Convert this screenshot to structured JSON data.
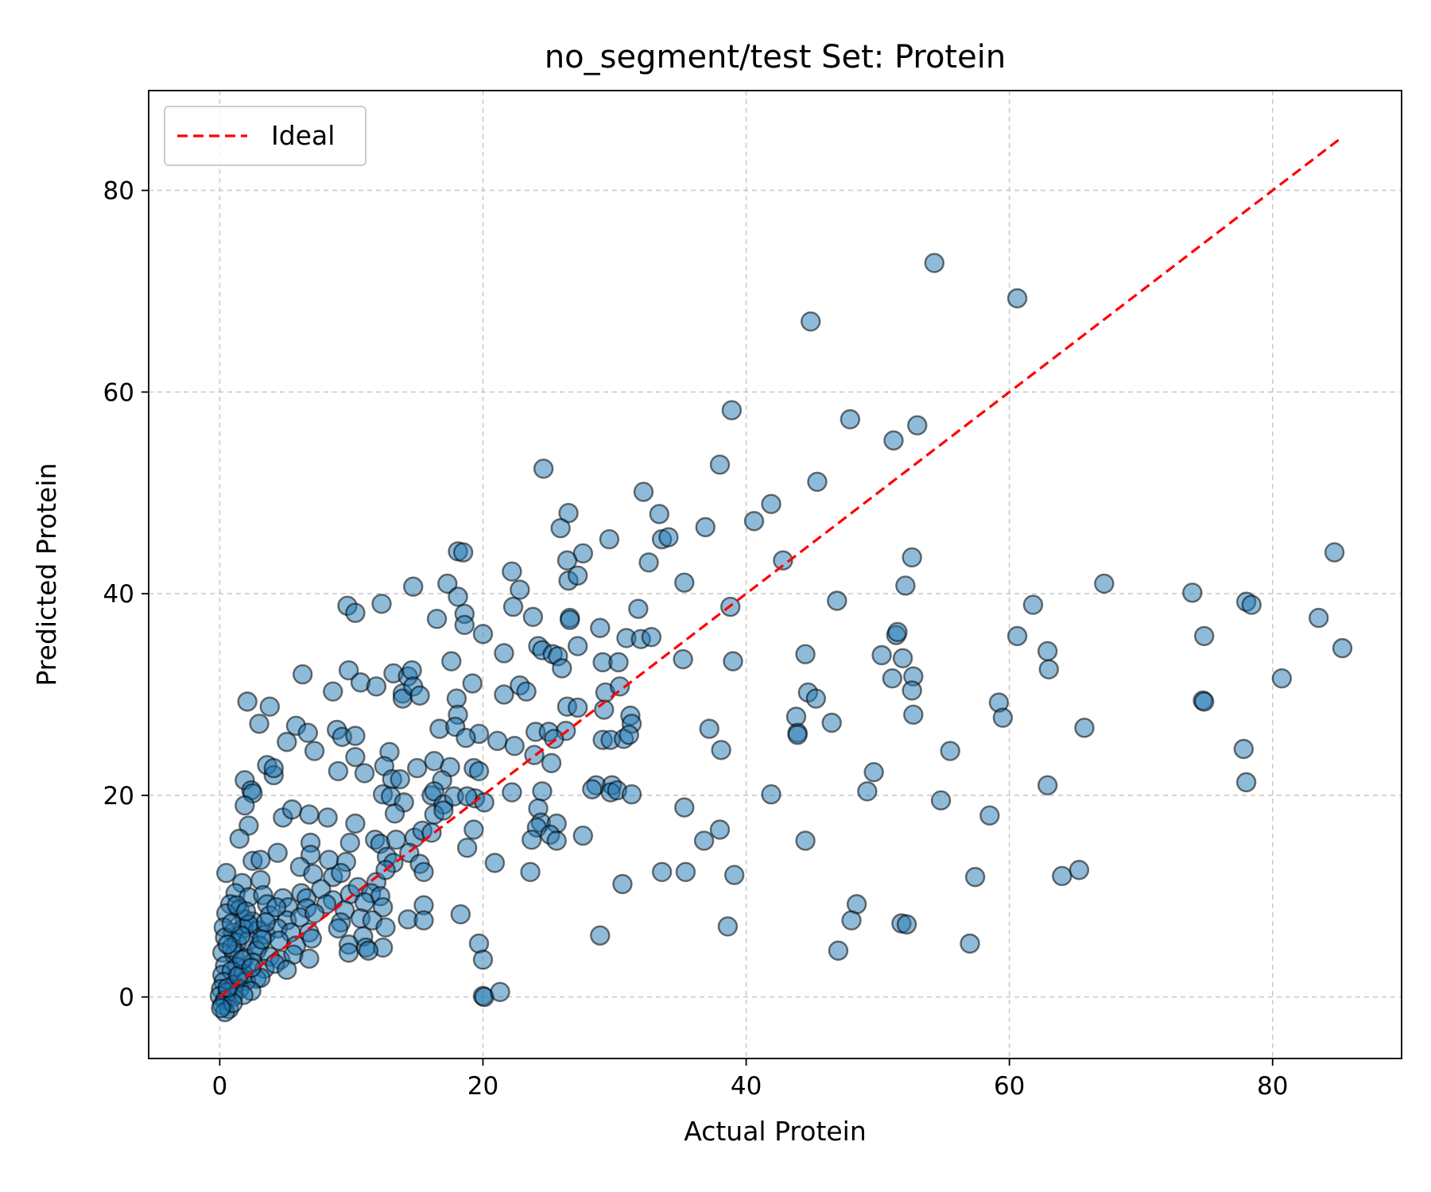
{
  "chart_data": {
    "type": "scatter",
    "title": "no_segment/test Set: Protein",
    "xlabel": "Actual Protein",
    "ylabel": "Predicted Protein",
    "xlim": [
      -5.4,
      89.8
    ],
    "ylim": [
      -6.1,
      89.9
    ],
    "xticks": [
      0,
      20,
      40,
      60,
      80
    ],
    "yticks": [
      0,
      20,
      40,
      60,
      80
    ],
    "grid": true,
    "legend": {
      "placement": "top-left",
      "entries": [
        "Ideal"
      ]
    },
    "ideal_line": {
      "from": [
        0,
        0
      ],
      "to": [
        85.2,
        85.2
      ],
      "color": "#ff0000",
      "style": "dashed"
    },
    "colors": {
      "points": "#1f77b4",
      "edge": "#000000"
    },
    "points": [
      [
        54.3,
        72.8
      ],
      [
        60.6,
        69.3
      ],
      [
        44.9,
        67.0
      ],
      [
        38.9,
        58.2
      ],
      [
        47.9,
        57.3
      ],
      [
        53.0,
        56.7
      ],
      [
        51.2,
        55.2
      ],
      [
        24.6,
        52.4
      ],
      [
        38.0,
        52.8
      ],
      [
        45.4,
        51.1
      ],
      [
        32.2,
        50.1
      ],
      [
        33.4,
        47.9
      ],
      [
        26.5,
        48.0
      ],
      [
        41.9,
        48.9
      ],
      [
        40.6,
        47.2
      ],
      [
        36.9,
        46.6
      ],
      [
        25.9,
        46.5
      ],
      [
        29.6,
        45.4
      ],
      [
        33.6,
        45.4
      ],
      [
        34.1,
        45.6
      ],
      [
        18.1,
        44.2
      ],
      [
        18.5,
        44.1
      ],
      [
        27.6,
        44.0
      ],
      [
        26.4,
        43.3
      ],
      [
        32.6,
        43.1
      ],
      [
        42.8,
        43.3
      ],
      [
        52.6,
        43.6
      ],
      [
        84.7,
        44.1
      ],
      [
        17.3,
        41.0
      ],
      [
        26.5,
        41.3
      ],
      [
        27.2,
        41.8
      ],
      [
        22.2,
        42.2
      ],
      [
        35.3,
        41.1
      ],
      [
        52.1,
        40.8
      ],
      [
        67.2,
        41.0
      ],
      [
        14.7,
        40.7
      ],
      [
        18.1,
        39.7
      ],
      [
        22.8,
        40.4
      ],
      [
        73.9,
        40.1
      ],
      [
        9.7,
        38.8
      ],
      [
        10.3,
        38.1
      ],
      [
        12.3,
        39.0
      ],
      [
        16.5,
        37.5
      ],
      [
        18.6,
        38.0
      ],
      [
        22.3,
        38.7
      ],
      [
        23.8,
        37.7
      ],
      [
        26.6,
        37.6
      ],
      [
        26.6,
        37.4
      ],
      [
        31.8,
        38.5
      ],
      [
        38.8,
        38.7
      ],
      [
        46.9,
        39.3
      ],
      [
        61.8,
        38.9
      ],
      [
        78.0,
        39.2
      ],
      [
        78.4,
        38.9
      ],
      [
        83.5,
        37.6
      ],
      [
        18.6,
        36.9
      ],
      [
        20.0,
        36.0
      ],
      [
        28.9,
        36.6
      ],
      [
        30.9,
        35.6
      ],
      [
        32.0,
        35.5
      ],
      [
        32.8,
        35.7
      ],
      [
        24.2,
        34.8
      ],
      [
        24.5,
        34.4
      ],
      [
        25.3,
        34.0
      ],
      [
        25.7,
        33.8
      ],
      [
        27.2,
        34.8
      ],
      [
        21.6,
        34.1
      ],
      [
        51.4,
        35.9
      ],
      [
        51.5,
        36.2
      ],
      [
        60.6,
        35.8
      ],
      [
        74.8,
        35.8
      ],
      [
        85.3,
        34.6
      ],
      [
        17.6,
        33.3
      ],
      [
        26.0,
        32.6
      ],
      [
        29.1,
        33.2
      ],
      [
        30.3,
        33.2
      ],
      [
        35.2,
        33.5
      ],
      [
        39.0,
        33.3
      ],
      [
        44.5,
        34.0
      ],
      [
        50.3,
        33.9
      ],
      [
        51.9,
        33.6
      ],
      [
        62.9,
        34.3
      ],
      [
        6.3,
        32.0
      ],
      [
        9.8,
        32.4
      ],
      [
        13.2,
        32.1
      ],
      [
        14.3,
        31.8
      ],
      [
        14.6,
        32.4
      ],
      [
        63.0,
        32.5
      ],
      [
        10.7,
        31.2
      ],
      [
        11.9,
        30.8
      ],
      [
        13.9,
        30.1
      ],
      [
        13.9,
        29.6
      ],
      [
        14.7,
        30.8
      ],
      [
        15.2,
        29.9
      ],
      [
        19.2,
        31.1
      ],
      [
        22.8,
        30.9
      ],
      [
        23.3,
        30.3
      ],
      [
        21.6,
        30.0
      ],
      [
        29.3,
        30.2
      ],
      [
        30.4,
        30.8
      ],
      [
        51.1,
        31.6
      ],
      [
        52.7,
        31.8
      ],
      [
        52.6,
        30.4
      ],
      [
        80.7,
        31.6
      ],
      [
        8.6,
        30.3
      ],
      [
        2.1,
        29.3
      ],
      [
        3.8,
        28.8
      ],
      [
        18.0,
        29.6
      ],
      [
        26.4,
        28.8
      ],
      [
        27.2,
        28.7
      ],
      [
        29.2,
        28.5
      ],
      [
        44.7,
        30.2
      ],
      [
        45.3,
        29.6
      ],
      [
        59.2,
        29.2
      ],
      [
        74.7,
        29.4
      ],
      [
        74.8,
        29.3
      ],
      [
        18.1,
        28.0
      ],
      [
        31.2,
        27.9
      ],
      [
        31.3,
        27.1
      ],
      [
        43.8,
        27.8
      ],
      [
        52.7,
        28.0
      ],
      [
        59.5,
        27.7
      ],
      [
        3.0,
        27.1
      ],
      [
        5.8,
        26.9
      ],
      [
        6.7,
        26.2
      ],
      [
        16.7,
        26.6
      ],
      [
        17.9,
        26.8
      ],
      [
        19.7,
        26.1
      ],
      [
        24.0,
        26.3
      ],
      [
        25.0,
        26.3
      ],
      [
        26.3,
        26.4
      ],
      [
        8.9,
        26.5
      ],
      [
        9.3,
        25.8
      ],
      [
        10.3,
        25.9
      ],
      [
        29.1,
        25.5
      ],
      [
        29.7,
        25.5
      ],
      [
        30.7,
        25.6
      ],
      [
        31.1,
        26.0
      ],
      [
        43.9,
        26.2
      ],
      [
        43.9,
        26.0
      ],
      [
        46.5,
        27.2
      ],
      [
        65.7,
        26.7
      ],
      [
        37.2,
        26.6
      ],
      [
        5.1,
        25.3
      ],
      [
        7.2,
        24.4
      ],
      [
        12.9,
        24.3
      ],
      [
        18.7,
        25.7
      ],
      [
        21.1,
        25.4
      ],
      [
        22.4,
        24.9
      ],
      [
        23.9,
        24.0
      ],
      [
        25.4,
        25.6
      ],
      [
        38.1,
        24.5
      ],
      [
        55.5,
        24.4
      ],
      [
        77.8,
        24.6
      ],
      [
        10.3,
        23.8
      ],
      [
        15.0,
        22.7
      ],
      [
        16.3,
        23.4
      ],
      [
        17.5,
        22.8
      ],
      [
        19.3,
        22.7
      ],
      [
        19.7,
        22.4
      ],
      [
        12.5,
        22.9
      ],
      [
        3.6,
        23.0
      ],
      [
        4.1,
        22.0
      ],
      [
        4.1,
        22.7
      ],
      [
        9.0,
        22.4
      ],
      [
        11.0,
        22.2
      ],
      [
        25.2,
        23.2
      ],
      [
        1.9,
        21.5
      ],
      [
        13.1,
        21.6
      ],
      [
        13.7,
        21.6
      ],
      [
        16.9,
        21.5
      ],
      [
        19.4,
        19.7
      ],
      [
        28.6,
        21.0
      ],
      [
        29.8,
        21.0
      ],
      [
        2.4,
        20.5
      ],
      [
        2.5,
        20.2
      ],
      [
        12.4,
        20.1
      ],
      [
        13.0,
        19.9
      ],
      [
        16.1,
        20.0
      ],
      [
        16.3,
        20.4
      ],
      [
        17.0,
        19.1
      ],
      [
        17.8,
        19.9
      ],
      [
        18.8,
        19.9
      ],
      [
        20.1,
        19.3
      ],
      [
        22.2,
        20.3
      ],
      [
        24.5,
        20.4
      ],
      [
        28.3,
        20.6
      ],
      [
        29.7,
        20.3
      ],
      [
        30.2,
        20.5
      ],
      [
        31.3,
        20.1
      ],
      [
        41.9,
        20.1
      ],
      [
        49.7,
        22.3
      ],
      [
        49.2,
        20.4
      ],
      [
        62.9,
        21.0
      ],
      [
        78.0,
        21.3
      ],
      [
        1.9,
        19.0
      ],
      [
        14.0,
        19.3
      ],
      [
        24.2,
        18.7
      ],
      [
        24.4,
        17.3
      ],
      [
        35.3,
        18.8
      ],
      [
        54.8,
        19.5
      ],
      [
        58.5,
        18.0
      ],
      [
        4.8,
        17.8
      ],
      [
        5.5,
        18.6
      ],
      [
        6.8,
        18.1
      ],
      [
        8.2,
        17.8
      ],
      [
        10.3,
        17.2
      ],
      [
        13.3,
        18.2
      ],
      [
        16.3,
        18.1
      ],
      [
        17.0,
        18.5
      ],
      [
        2.2,
        17.0
      ],
      [
        19.3,
        16.6
      ],
      [
        24.1,
        16.8
      ],
      [
        25.6,
        17.2
      ],
      [
        27.6,
        16.0
      ],
      [
        38.0,
        16.6
      ],
      [
        1.5,
        15.7
      ],
      [
        6.9,
        15.3
      ],
      [
        9.9,
        15.3
      ],
      [
        11.8,
        15.6
      ],
      [
        12.2,
        15.2
      ],
      [
        13.4,
        15.6
      ],
      [
        14.8,
        15.8
      ],
      [
        15.4,
        16.5
      ],
      [
        16.1,
        16.3
      ],
      [
        23.7,
        15.6
      ],
      [
        25.1,
        16.1
      ],
      [
        25.6,
        15.5
      ],
      [
        36.8,
        15.5
      ],
      [
        44.5,
        15.5
      ],
      [
        18.8,
        14.8
      ],
      [
        4.4,
        14.3
      ],
      [
        6.9,
        14.1
      ],
      [
        8.3,
        13.6
      ],
      [
        9.6,
        13.4
      ],
      [
        12.7,
        13.9
      ],
      [
        13.2,
        13.3
      ],
      [
        14.4,
        14.3
      ],
      [
        15.2,
        13.2
      ],
      [
        2.5,
        13.5
      ],
      [
        3.1,
        13.6
      ],
      [
        20.9,
        13.3
      ],
      [
        23.6,
        12.4
      ],
      [
        33.6,
        12.4
      ],
      [
        35.4,
        12.4
      ],
      [
        39.1,
        12.1
      ],
      [
        57.4,
        11.9
      ],
      [
        64.0,
        12.0
      ],
      [
        65.3,
        12.6
      ],
      [
        0.5,
        12.3
      ],
      [
        1.7,
        11.3
      ],
      [
        3.1,
        11.6
      ],
      [
        6.1,
        12.9
      ],
      [
        7.1,
        12.2
      ],
      [
        8.6,
        11.9
      ],
      [
        9.2,
        12.3
      ],
      [
        11.9,
        11.4
      ],
      [
        12.6,
        12.6
      ],
      [
        15.5,
        12.4
      ],
      [
        30.6,
        11.2
      ],
      [
        1.2,
        10.3
      ],
      [
        2.2,
        9.9
      ],
      [
        3.3,
        10.1
      ],
      [
        4.8,
        9.8
      ],
      [
        6.2,
        10.3
      ],
      [
        6.6,
        9.8
      ],
      [
        7.7,
        10.7
      ],
      [
        8.6,
        9.6
      ],
      [
        9.9,
        10.2
      ],
      [
        10.5,
        10.9
      ],
      [
        11.5,
        10.3
      ],
      [
        12.2,
        10.0
      ],
      [
        0.8,
        9.2
      ],
      [
        1.5,
        8.7
      ],
      [
        3.6,
        9.2
      ],
      [
        5.2,
        8.9
      ],
      [
        6.6,
        8.8
      ],
      [
        8.1,
        9.2
      ],
      [
        9.5,
        8.6
      ],
      [
        11.0,
        9.4
      ],
      [
        12.4,
        8.9
      ],
      [
        15.5,
        9.1
      ],
      [
        18.3,
        8.2
      ],
      [
        48.4,
        9.2
      ],
      [
        0.5,
        8.3
      ],
      [
        1.9,
        7.7
      ],
      [
        2.5,
        7.5
      ],
      [
        3.8,
        8.1
      ],
      [
        5.1,
        7.6
      ],
      [
        6.1,
        7.9
      ],
      [
        7.2,
        8.3
      ],
      [
        9.2,
        7.4
      ],
      [
        10.7,
        7.8
      ],
      [
        11.6,
        7.6
      ],
      [
        14.3,
        7.7
      ],
      [
        15.5,
        7.6
      ],
      [
        38.6,
        7.0
      ],
      [
        48.0,
        7.6
      ],
      [
        51.8,
        7.3
      ],
      [
        52.2,
        7.2
      ],
      [
        0.3,
        6.9
      ],
      [
        1.0,
        6.4
      ],
      [
        1.8,
        6.8
      ],
      [
        2.9,
        6.6
      ],
      [
        3.5,
        6.2
      ],
      [
        4.4,
        6.8
      ],
      [
        5.4,
        6.4
      ],
      [
        6.8,
        6.4
      ],
      [
        9.0,
        6.8
      ],
      [
        10.9,
        6.0
      ],
      [
        12.6,
        6.9
      ],
      [
        28.9,
        6.1
      ],
      [
        0.4,
        5.9
      ],
      [
        1.3,
        5.4
      ],
      [
        2.2,
        5.6
      ],
      [
        3.0,
        5.1
      ],
      [
        4.5,
        5.6
      ],
      [
        5.8,
        5.1
      ],
      [
        7.0,
        5.8
      ],
      [
        9.8,
        5.2
      ],
      [
        11.1,
        4.9
      ],
      [
        12.4,
        4.9
      ],
      [
        19.7,
        5.3
      ],
      [
        57.0,
        5.3
      ],
      [
        47.0,
        4.6
      ],
      [
        0.2,
        4.4
      ],
      [
        1.1,
        4.2
      ],
      [
        1.9,
        3.8
      ],
      [
        2.8,
        4.6
      ],
      [
        3.8,
        4.0
      ],
      [
        4.6,
        3.7
      ],
      [
        5.6,
        4.2
      ],
      [
        6.8,
        3.8
      ],
      [
        9.8,
        4.4
      ],
      [
        11.3,
        4.6
      ],
      [
        20.0,
        3.7
      ],
      [
        0.4,
        3.1
      ],
      [
        1.3,
        3.0
      ],
      [
        2.5,
        3.4
      ],
      [
        3.4,
        2.8
      ],
      [
        4.2,
        3.3
      ],
      [
        5.1,
        2.7
      ],
      [
        0.2,
        2.2
      ],
      [
        0.9,
        2.6
      ],
      [
        1.8,
        2.3
      ],
      [
        2.8,
        1.8
      ],
      [
        0.3,
        1.5
      ],
      [
        1.1,
        1.2
      ],
      [
        2.0,
        1.6
      ],
      [
        3.1,
        1.9
      ],
      [
        0.1,
        0.8
      ],
      [
        0.6,
        0.5
      ],
      [
        1.5,
        0.8
      ],
      [
        2.4,
        0.6
      ],
      [
        0.0,
        0.1
      ],
      [
        0.4,
        -0.3
      ],
      [
        1.0,
        0.0
      ],
      [
        1.8,
        0.2
      ],
      [
        0.2,
        -0.8
      ],
      [
        0.7,
        -1.2
      ],
      [
        0.4,
        -1.5
      ],
      [
        1.0,
        -0.6
      ],
      [
        0.1,
        -1.1
      ],
      [
        0.6,
        0.9
      ],
      [
        20.0,
        0.1
      ],
      [
        20.1,
        0.0
      ],
      [
        21.3,
        0.5
      ],
      [
        1.4,
        2.1
      ],
      [
        0.9,
        4.9
      ],
      [
        2.2,
        7.2
      ],
      [
        1.6,
        6.1
      ],
      [
        0.9,
        7.3
      ],
      [
        1.3,
        9.1
      ],
      [
        2.0,
        8.5
      ],
      [
        3.5,
        7.4
      ],
      [
        4.3,
        8.9
      ],
      [
        0.6,
        5.2
      ],
      [
        1.7,
        3.7
      ],
      [
        2.4,
        2.9
      ],
      [
        3.2,
        5.7
      ]
    ]
  }
}
